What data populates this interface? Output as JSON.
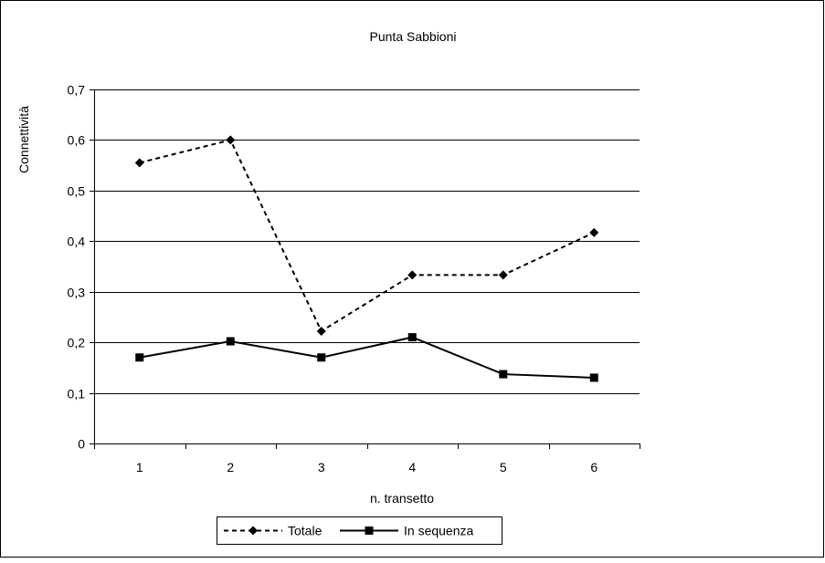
{
  "chart_data": {
    "type": "line",
    "title": "Punta Sabbioni",
    "xlabel": "n. transetto",
    "ylabel": "Connettività",
    "categories": [
      "1",
      "2",
      "3",
      "4",
      "5",
      "6"
    ],
    "ylim": [
      0,
      0.7
    ],
    "yticks": [
      0,
      0.1,
      0.2,
      0.3,
      0.4,
      0.5,
      0.6,
      0.7
    ],
    "ytick_labels": [
      "0",
      "0,1",
      "0,2",
      "0,3",
      "0,4",
      "0,5",
      "0,6",
      "0,7"
    ],
    "grid": true,
    "legend_position": "bottom",
    "series": [
      {
        "name": "Totale",
        "values": [
          0.555,
          0.6,
          0.222,
          0.333,
          0.333,
          0.417
        ],
        "style": "dashed",
        "marker": "diamond",
        "color": "#000000"
      },
      {
        "name": "In sequenza",
        "values": [
          0.17,
          0.202,
          0.17,
          0.21,
          0.137,
          0.13
        ],
        "style": "solid",
        "marker": "square",
        "color": "#000000"
      }
    ]
  }
}
